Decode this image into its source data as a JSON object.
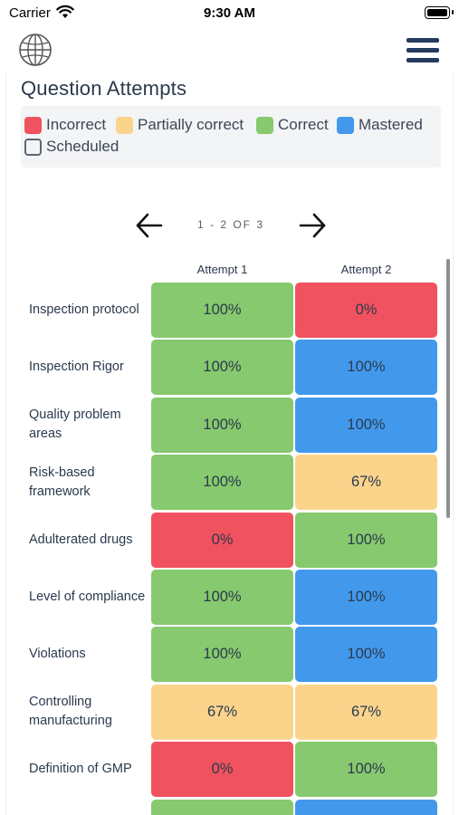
{
  "status_bar": {
    "carrier": "Carrier",
    "time": "9:30 AM"
  },
  "header": {
    "globe_icon": "globe-icon",
    "menu_icon": "hamburger-menu-icon"
  },
  "page": {
    "title": "Question Attempts"
  },
  "legend": {
    "items": [
      {
        "key": "incorrect",
        "label": "Incorrect",
        "color": "#f0525f"
      },
      {
        "key": "partial",
        "label": "Partially correct",
        "color": "#fbd48c"
      },
      {
        "key": "correct",
        "label": "Correct",
        "color": "#86c96e"
      },
      {
        "key": "mastered",
        "label": "Mastered",
        "color": "#4299ec"
      },
      {
        "key": "scheduled",
        "label": "Scheduled",
        "color": "outline"
      }
    ]
  },
  "pager": {
    "label": "1 - 2 OF 3",
    "prev_icon": "arrow-left-icon",
    "next_icon": "arrow-right-icon"
  },
  "table": {
    "columns": [
      "Attempt 1",
      "Attempt 2"
    ],
    "rows": [
      {
        "label": "Inspection protocol",
        "cells": [
          {
            "value": "100%",
            "status": "correct"
          },
          {
            "value": "0%",
            "status": "incorrect"
          }
        ]
      },
      {
        "label": "Inspection Rigor",
        "cells": [
          {
            "value": "100%",
            "status": "correct"
          },
          {
            "value": "100%",
            "status": "mastered"
          }
        ]
      },
      {
        "label": "Quality problem areas",
        "cells": [
          {
            "value": "100%",
            "status": "correct"
          },
          {
            "value": "100%",
            "status": "mastered"
          }
        ]
      },
      {
        "label": "Risk-based framework",
        "cells": [
          {
            "value": "100%",
            "status": "correct"
          },
          {
            "value": "67%",
            "status": "partial"
          }
        ]
      },
      {
        "label": "Adulterated drugs",
        "cells": [
          {
            "value": "0%",
            "status": "incorrect"
          },
          {
            "value": "100%",
            "status": "correct"
          }
        ]
      },
      {
        "label": "Level of compliance",
        "cells": [
          {
            "value": "100%",
            "status": "correct"
          },
          {
            "value": "100%",
            "status": "mastered"
          }
        ]
      },
      {
        "label": "Violations",
        "cells": [
          {
            "value": "100%",
            "status": "correct"
          },
          {
            "value": "100%",
            "status": "mastered"
          }
        ]
      },
      {
        "label": "Controlling manufacturing",
        "cells": [
          {
            "value": "67%",
            "status": "partial"
          },
          {
            "value": "67%",
            "status": "partial"
          }
        ]
      },
      {
        "label": "Definition of GMP",
        "cells": [
          {
            "value": "0%",
            "status": "incorrect"
          },
          {
            "value": "100%",
            "status": "correct"
          }
        ]
      },
      {
        "label": "",
        "cells": [
          {
            "value": "",
            "status": "correct"
          },
          {
            "value": "",
            "status": "mastered"
          }
        ]
      }
    ]
  }
}
